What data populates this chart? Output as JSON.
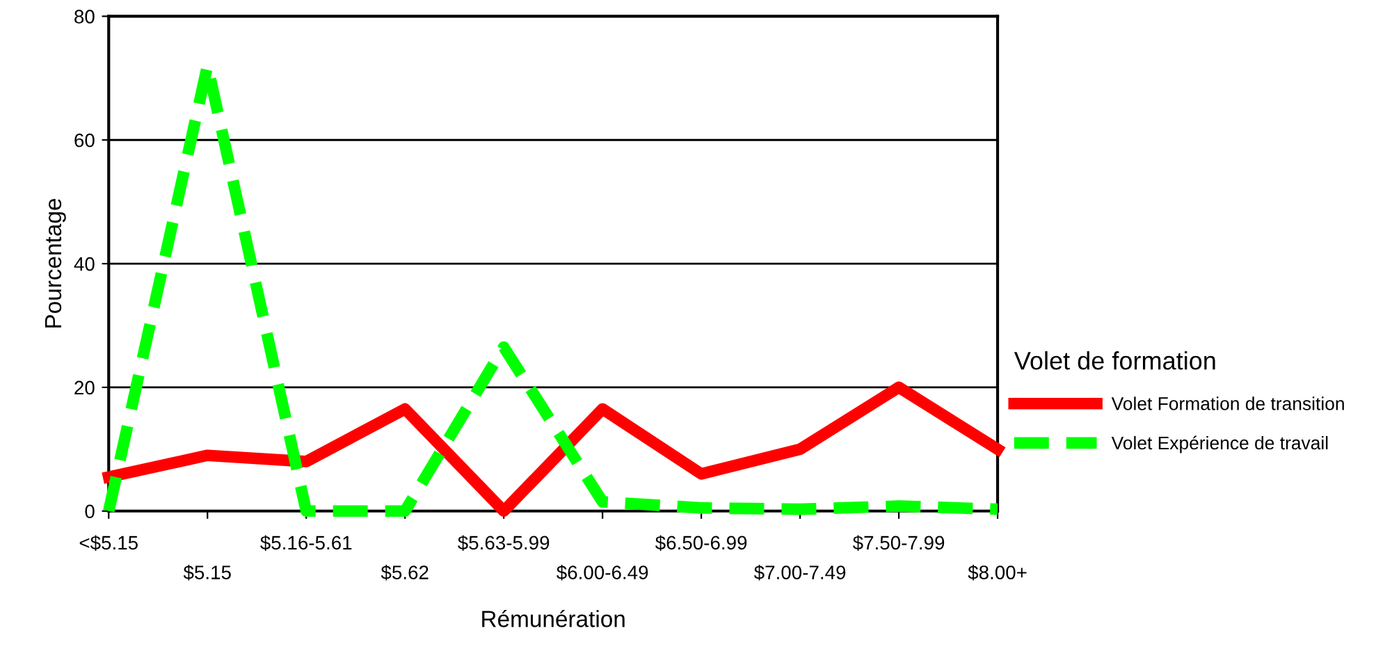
{
  "chart_data": {
    "type": "line",
    "xlabel": "Rémunération",
    "ylabel": "Pourcentage",
    "legend_title": "Volet de formation",
    "categories": [
      "<$5.15",
      "$5.15",
      "$5.16-5.61",
      "$5.62",
      "$5.63-5.99",
      "$6.00-6.49",
      "$6.50-6.99",
      "$7.00-7.49",
      "$7.50-7.99",
      "$8.00+"
    ],
    "series": [
      {
        "name": "Volet Formation de transition",
        "color": "#ff0000",
        "line_style": "solid",
        "values": [
          5.5,
          9,
          8,
          16.5,
          0,
          16.5,
          6,
          10,
          20,
          10
        ]
      },
      {
        "name": "Volet Expérience de travail",
        "color": "#00ff00",
        "line_style": "dashed",
        "values": [
          0,
          72,
          0,
          0,
          26.5,
          1.5,
          0.5,
          0.3,
          0.8,
          0.3
        ]
      }
    ],
    "ylim": [
      0,
      80
    ],
    "yticks": [
      0,
      20,
      40,
      60,
      80
    ],
    "grid": "y",
    "legend": "right",
    "marker": "none"
  }
}
